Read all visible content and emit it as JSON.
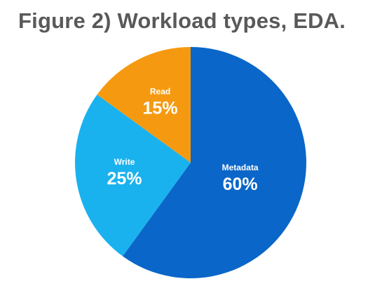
{
  "chart_data": {
    "type": "pie",
    "title": "Figure 2) Workload types, EDA.",
    "slices": [
      {
        "label": "Metadata",
        "value": 60,
        "display": "60%",
        "color": "#0a66c8"
      },
      {
        "label": "Write",
        "value": 25,
        "display": "25%",
        "color": "#1ab2ee"
      },
      {
        "label": "Read",
        "value": 15,
        "display": "15%",
        "color": "#f59a10"
      }
    ],
    "legend": "none"
  }
}
